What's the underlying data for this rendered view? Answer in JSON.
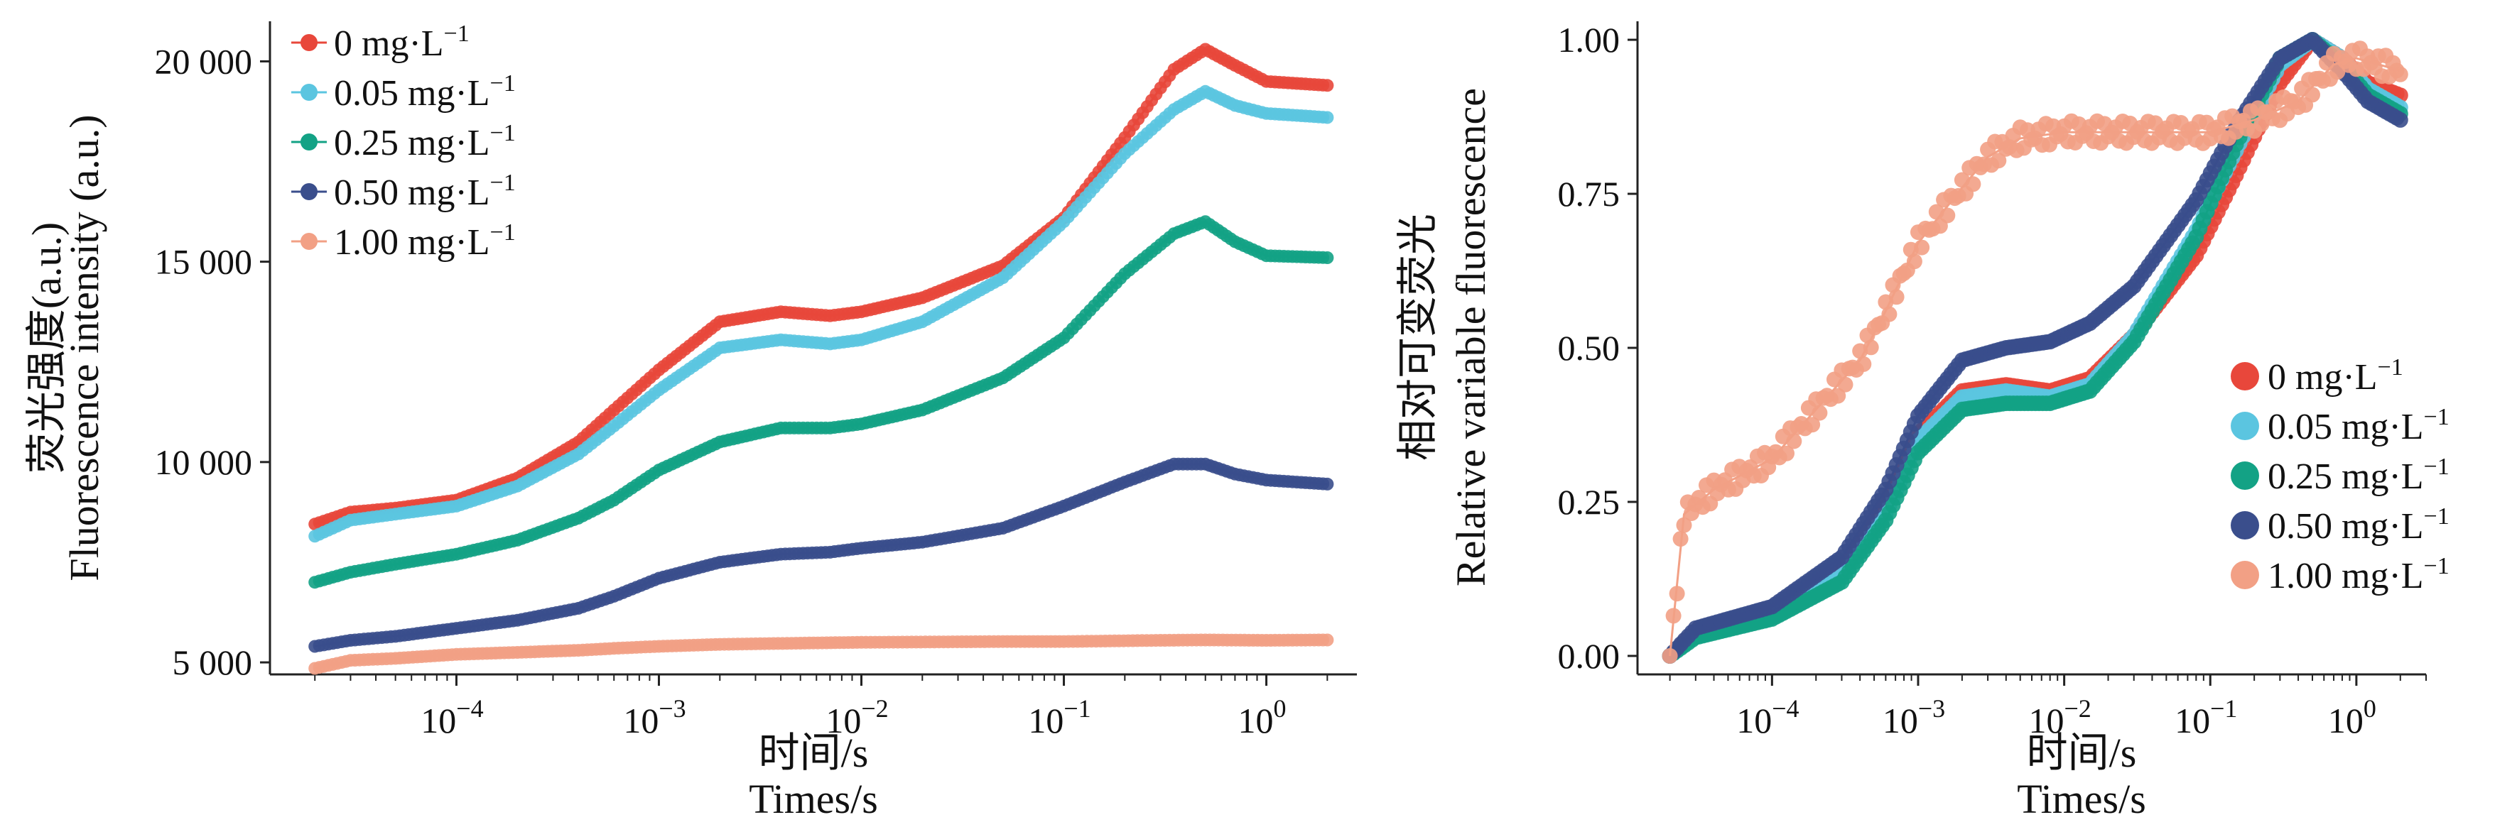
{
  "chart_data": [
    {
      "type": "scatter",
      "xscale": "log",
      "xlim": [
        1.2e-05,
        2.8
      ],
      "ylim": [
        4700,
        21000
      ],
      "ylabel_cn": "荧光强度(a.u.)",
      "ylabel_en": "Fluorescence intensity (a.u.)",
      "xlabel_cn": "时间/s",
      "xlabel_en": "Times/s",
      "yticks": [
        5000,
        10000,
        15000,
        20000
      ],
      "ytick_labels": [
        "5 000",
        "10 000",
        "15 000",
        "20 000"
      ],
      "xticks": [
        0.0001,
        0.001,
        0.01,
        0.1,
        1
      ],
      "xtick_labels": [
        {
          "base": "10",
          "exp": "−4"
        },
        {
          "base": "10",
          "exp": "−3"
        },
        {
          "base": "10",
          "exp": "−2"
        },
        {
          "base": "10",
          "exp": "−1"
        },
        {
          "base": "10",
          "exp": "0"
        }
      ],
      "legend_position": "top-left",
      "series": [
        {
          "name": "0 mg·L⁻¹",
          "color": "#e8473b",
          "points": [
            [
              2e-05,
              8450
            ],
            [
              3e-05,
              8750
            ],
            [
              5e-05,
              8850
            ],
            [
              0.0001,
              9050
            ],
            [
              0.0002,
              9600
            ],
            [
              0.0004,
              10500
            ],
            [
              0.0006,
              11300
            ],
            [
              0.001,
              12300
            ],
            [
              0.002,
              13500
            ],
            [
              0.004,
              13750
            ],
            [
              0.007,
              13650
            ],
            [
              0.01,
              13750
            ],
            [
              0.02,
              14100
            ],
            [
              0.05,
              14900
            ],
            [
              0.1,
              16100
            ],
            [
              0.2,
              18100
            ],
            [
              0.35,
              19800
            ],
            [
              0.5,
              20300
            ],
            [
              0.7,
              19900
            ],
            [
              1,
              19500
            ],
            [
              2,
              19400
            ]
          ]
        },
        {
          "name": "0.05 mg·L⁻¹",
          "color": "#5bc5e0",
          "points": [
            [
              2e-05,
              8150
            ],
            [
              3e-05,
              8550
            ],
            [
              5e-05,
              8700
            ],
            [
              0.0001,
              8900
            ],
            [
              0.0002,
              9400
            ],
            [
              0.0004,
              10200
            ],
            [
              0.0006,
              10900
            ],
            [
              0.001,
              11800
            ],
            [
              0.002,
              12850
            ],
            [
              0.004,
              13050
            ],
            [
              0.007,
              12950
            ],
            [
              0.01,
              13050
            ],
            [
              0.02,
              13500
            ],
            [
              0.05,
              14600
            ],
            [
              0.1,
              16000
            ],
            [
              0.2,
              17700
            ],
            [
              0.35,
              18800
            ],
            [
              0.5,
              19250
            ],
            [
              0.7,
              18900
            ],
            [
              1,
              18700
            ],
            [
              2,
              18600
            ]
          ]
        },
        {
          "name": "0.25 mg·L⁻¹",
          "color": "#13a285",
          "points": [
            [
              2e-05,
              7000
            ],
            [
              3e-05,
              7250
            ],
            [
              5e-05,
              7450
            ],
            [
              0.0001,
              7700
            ],
            [
              0.0002,
              8050
            ],
            [
              0.0004,
              8600
            ],
            [
              0.0006,
              9050
            ],
            [
              0.001,
              9800
            ],
            [
              0.002,
              10500
            ],
            [
              0.004,
              10850
            ],
            [
              0.007,
              10850
            ],
            [
              0.01,
              10950
            ],
            [
              0.02,
              11300
            ],
            [
              0.05,
              12100
            ],
            [
              0.1,
              13100
            ],
            [
              0.2,
              14700
            ],
            [
              0.35,
              15700
            ],
            [
              0.5,
              16000
            ],
            [
              0.7,
              15500
            ],
            [
              1,
              15150
            ],
            [
              2,
              15100
            ]
          ]
        },
        {
          "name": "0.50 mg·L⁻¹",
          "color": "#3a4e8c",
          "points": [
            [
              2e-05,
              5400
            ],
            [
              3e-05,
              5550
            ],
            [
              5e-05,
              5650
            ],
            [
              0.0001,
              5850
            ],
            [
              0.0002,
              6050
            ],
            [
              0.0004,
              6350
            ],
            [
              0.0006,
              6650
            ],
            [
              0.001,
              7100
            ],
            [
              0.002,
              7500
            ],
            [
              0.004,
              7700
            ],
            [
              0.007,
              7750
            ],
            [
              0.01,
              7850
            ],
            [
              0.02,
              8000
            ],
            [
              0.05,
              8350
            ],
            [
              0.1,
              8900
            ],
            [
              0.2,
              9500
            ],
            [
              0.35,
              9950
            ],
            [
              0.5,
              9950
            ],
            [
              0.7,
              9700
            ],
            [
              1,
              9550
            ],
            [
              2,
              9450
            ]
          ]
        },
        {
          "name": "1.00 mg·L⁻¹",
          "color": "#f2a085",
          "points": [
            [
              2e-05,
              4850
            ],
            [
              3e-05,
              5050
            ],
            [
              5e-05,
              5100
            ],
            [
              0.0001,
              5200
            ],
            [
              0.0002,
              5250
            ],
            [
              0.0004,
              5300
            ],
            [
              0.0006,
              5350
            ],
            [
              0.001,
              5400
            ],
            [
              0.002,
              5450
            ],
            [
              0.005,
              5480
            ],
            [
              0.01,
              5500
            ],
            [
              0.05,
              5520
            ],
            [
              0.1,
              5520
            ],
            [
              0.3,
              5550
            ],
            [
              0.5,
              5560
            ],
            [
              1,
              5550
            ],
            [
              2,
              5560
            ]
          ]
        }
      ]
    },
    {
      "type": "scatter",
      "xscale": "log",
      "xlim": [
        1.2e-05,
        3.0
      ],
      "ylim": [
        -0.03,
        1.03
      ],
      "ylabel_cn": "相对可变荧光",
      "ylabel_en": "Relative variable fluorescence",
      "xlabel_cn": "时间/s",
      "xlabel_en": "Times/s",
      "yticks": [
        0,
        0.25,
        0.5,
        0.75,
        1
      ],
      "ytick_labels": [
        "0.00",
        "0.25",
        "0.50",
        "0.75",
        "1.00"
      ],
      "xticks": [
        0.0001,
        0.001,
        0.01,
        0.1,
        1
      ],
      "xtick_labels": [
        {
          "base": "10",
          "exp": "−4"
        },
        {
          "base": "10",
          "exp": "−3"
        },
        {
          "base": "10",
          "exp": "−2"
        },
        {
          "base": "10",
          "exp": "−1"
        },
        {
          "base": "10",
          "exp": "0"
        }
      ],
      "legend_position": "bottom-right",
      "series": [
        {
          "name": "0 mg·L⁻¹",
          "color": "#e8473b",
          "points": [
            [
              2e-05,
              0
            ],
            [
              3e-05,
              0.04
            ],
            [
              0.0001,
              0.07
            ],
            [
              0.0003,
              0.14
            ],
            [
              0.0006,
              0.25
            ],
            [
              0.001,
              0.36
            ],
            [
              0.002,
              0.43
            ],
            [
              0.004,
              0.44
            ],
            [
              0.008,
              0.43
            ],
            [
              0.015,
              0.45
            ],
            [
              0.03,
              0.52
            ],
            [
              0.08,
              0.65
            ],
            [
              0.15,
              0.78
            ],
            [
              0.3,
              0.93
            ],
            [
              0.5,
              1.0
            ],
            [
              0.8,
              0.97
            ],
            [
              1.2,
              0.93
            ],
            [
              2,
              0.91
            ]
          ]
        },
        {
          "name": "0.05 mg·L⁻¹",
          "color": "#5bc5e0",
          "points": [
            [
              2e-05,
              0
            ],
            [
              3e-05,
              0.035
            ],
            [
              0.0001,
              0.065
            ],
            [
              0.0003,
              0.13
            ],
            [
              0.0006,
              0.23
            ],
            [
              0.001,
              0.35
            ],
            [
              0.002,
              0.42
            ],
            [
              0.004,
              0.43
            ],
            [
              0.008,
              0.42
            ],
            [
              0.015,
              0.44
            ],
            [
              0.03,
              0.52
            ],
            [
              0.08,
              0.69
            ],
            [
              0.15,
              0.82
            ],
            [
              0.3,
              0.96
            ],
            [
              0.5,
              1.0
            ],
            [
              0.8,
              0.97
            ],
            [
              1.2,
              0.92
            ],
            [
              2,
              0.89
            ]
          ]
        },
        {
          "name": "0.25 mg·L⁻¹",
          "color": "#13a285",
          "points": [
            [
              2e-05,
              0
            ],
            [
              3e-05,
              0.03
            ],
            [
              0.0001,
              0.06
            ],
            [
              0.0003,
              0.12
            ],
            [
              0.0006,
              0.22
            ],
            [
              0.001,
              0.33
            ],
            [
              0.002,
              0.4
            ],
            [
              0.004,
              0.41
            ],
            [
              0.008,
              0.41
            ],
            [
              0.015,
              0.43
            ],
            [
              0.03,
              0.51
            ],
            [
              0.08,
              0.68
            ],
            [
              0.15,
              0.83
            ],
            [
              0.3,
              0.97
            ],
            [
              0.5,
              1.0
            ],
            [
              0.8,
              0.96
            ],
            [
              1.2,
              0.91
            ],
            [
              2,
              0.88
            ]
          ]
        },
        {
          "name": "0.50 mg·L⁻¹",
          "color": "#3a4e8c",
          "points": [
            [
              2e-05,
              0
            ],
            [
              3e-05,
              0.045
            ],
            [
              0.0001,
              0.08
            ],
            [
              0.0003,
              0.16
            ],
            [
              0.0006,
              0.27
            ],
            [
              0.001,
              0.39
            ],
            [
              0.002,
              0.48
            ],
            [
              0.004,
              0.5
            ],
            [
              0.008,
              0.51
            ],
            [
              0.015,
              0.54
            ],
            [
              0.03,
              0.6
            ],
            [
              0.08,
              0.74
            ],
            [
              0.15,
              0.86
            ],
            [
              0.3,
              0.97
            ],
            [
              0.5,
              1.0
            ],
            [
              0.8,
              0.95
            ],
            [
              1.2,
              0.9
            ],
            [
              2,
              0.87
            ]
          ]
        },
        {
          "name": "1.00 mg·L⁻¹",
          "color": "#f2a085",
          "points": [
            [
              2e-05,
              0
            ],
            [
              2.5e-05,
              0.23
            ],
            [
              4e-05,
              0.27
            ],
            [
              0.0001,
              0.32
            ],
            [
              0.0002,
              0.4
            ],
            [
              0.0004,
              0.48
            ],
            [
              0.0006,
              0.56
            ],
            [
              0.001,
              0.67
            ],
            [
              0.002,
              0.76
            ],
            [
              0.003,
              0.81
            ],
            [
              0.005,
              0.84
            ],
            [
              0.01,
              0.85
            ],
            [
              0.02,
              0.85
            ],
            [
              0.05,
              0.85
            ],
            [
              0.1,
              0.85
            ],
            [
              0.2,
              0.87
            ],
            [
              0.4,
              0.9
            ],
            [
              0.7,
              0.96
            ],
            [
              1,
              0.97
            ],
            [
              2,
              0.95
            ]
          ]
        }
      ]
    }
  ]
}
